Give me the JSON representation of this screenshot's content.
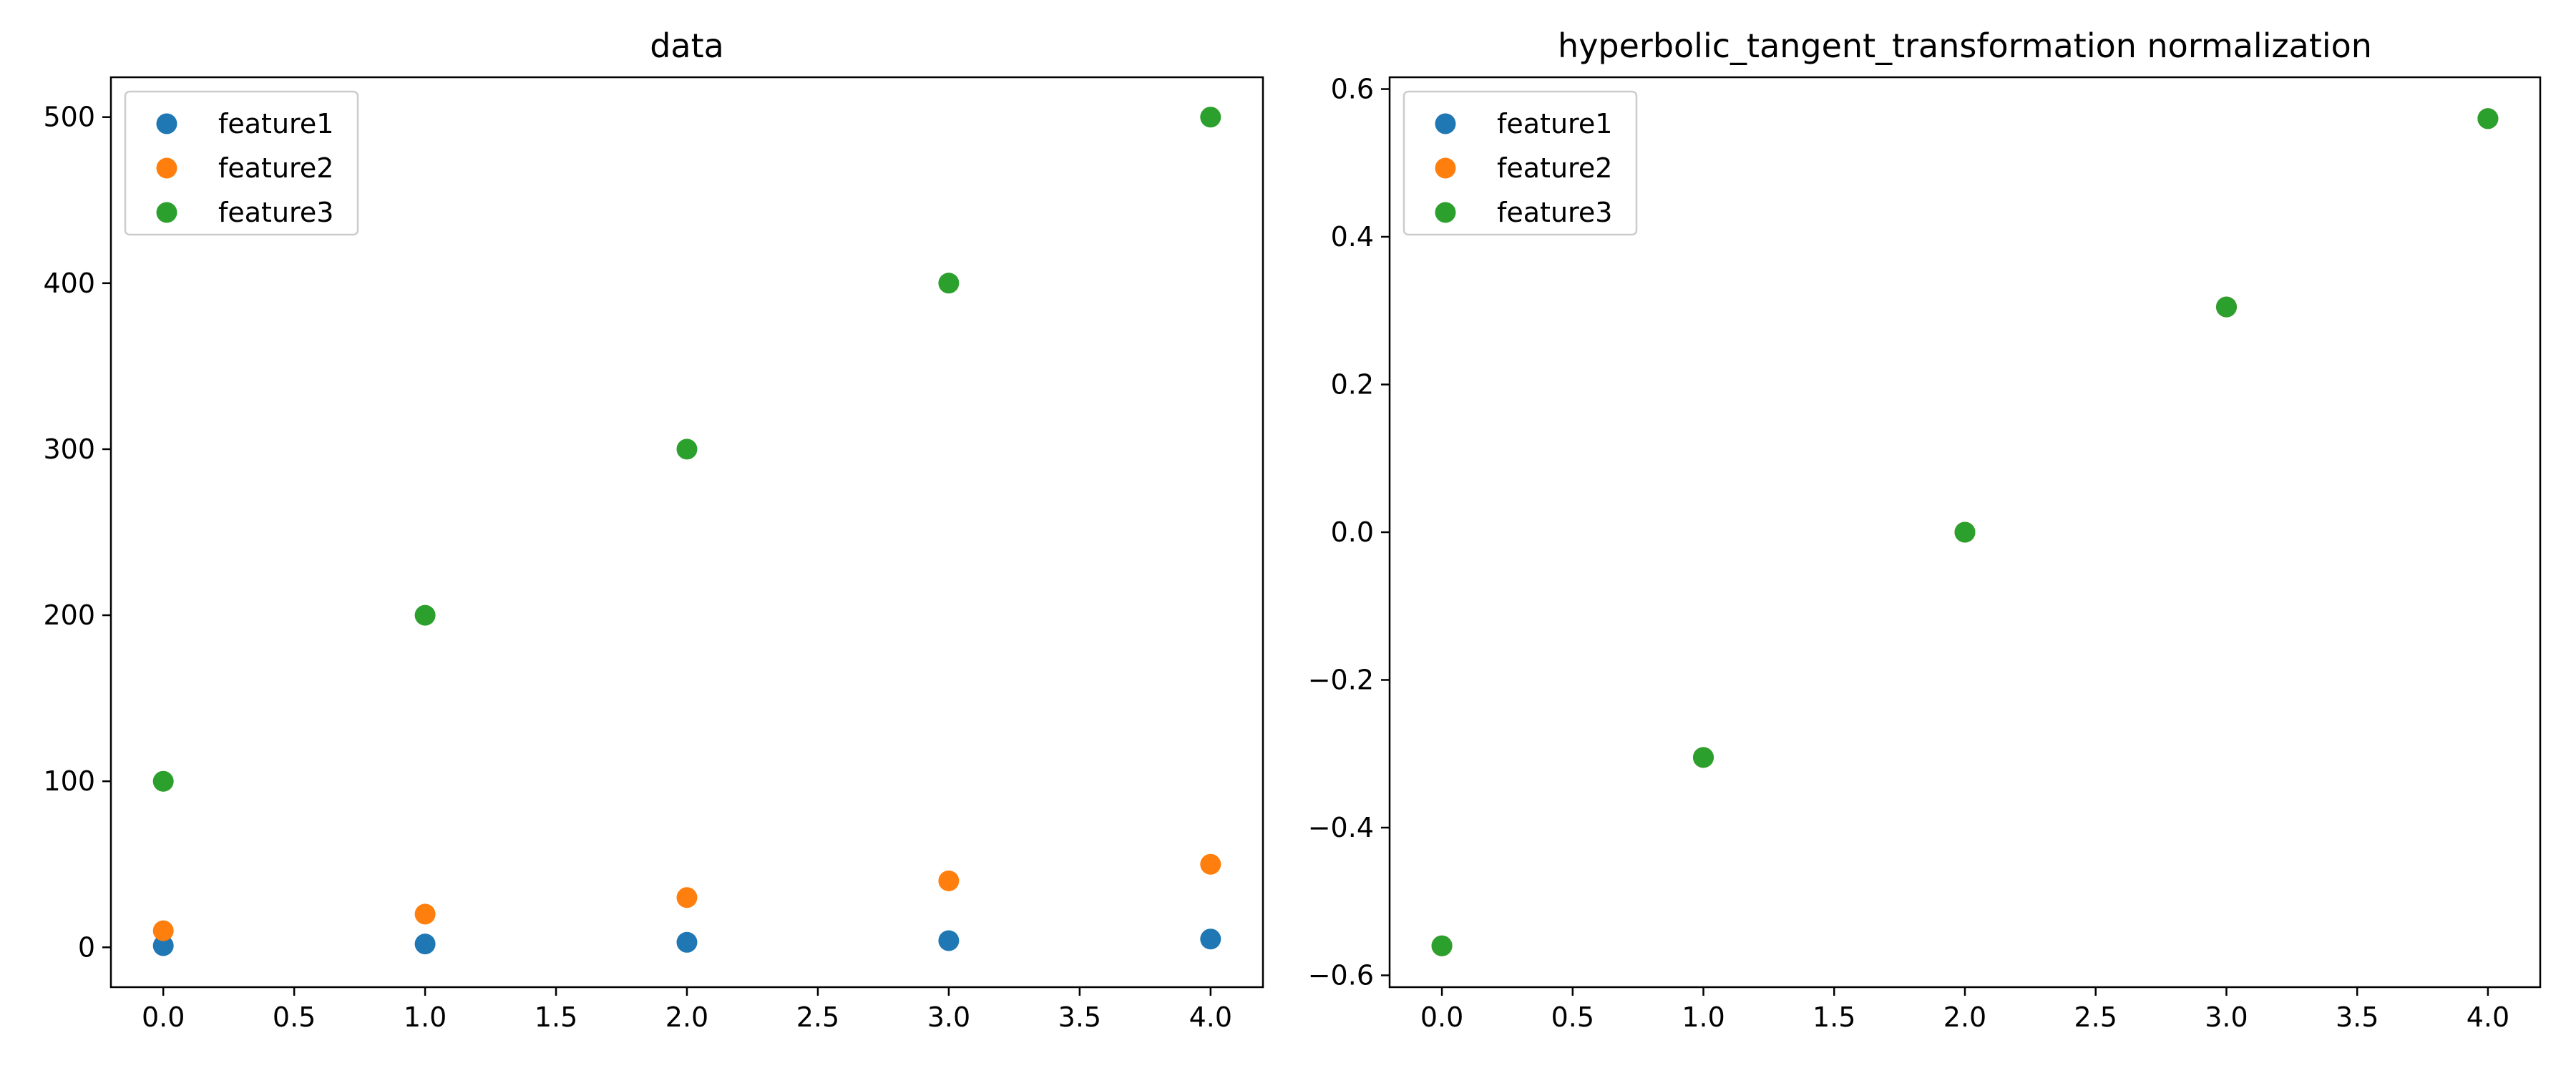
{
  "chart_data": [
    {
      "type": "scatter",
      "title": "data",
      "xlabel": "",
      "ylabel": "",
      "xlim": [
        -0.2,
        4.2
      ],
      "ylim": [
        -24,
        524
      ],
      "xticks": [
        0.0,
        0.5,
        1.0,
        1.5,
        2.0,
        2.5,
        3.0,
        3.5,
        4.0
      ],
      "xtick_labels": [
        "0.0",
        "0.5",
        "1.0",
        "1.5",
        "2.0",
        "2.5",
        "3.0",
        "3.5",
        "4.0"
      ],
      "yticks": [
        0,
        100,
        200,
        300,
        400,
        500
      ],
      "ytick_labels": [
        "0",
        "100",
        "200",
        "300",
        "400",
        "500"
      ],
      "grid": false,
      "legend": "top-left",
      "series": [
        {
          "name": "feature1",
          "color": "#1f77b4",
          "x": [
            0,
            1,
            2,
            3,
            4
          ],
          "y": [
            1,
            2,
            3,
            4,
            5
          ]
        },
        {
          "name": "feature2",
          "color": "#ff7f0e",
          "x": [
            0,
            1,
            2,
            3,
            4
          ],
          "y": [
            10,
            20,
            30,
            40,
            50
          ]
        },
        {
          "name": "feature3",
          "color": "#2ca02c",
          "x": [
            0,
            1,
            2,
            3,
            4
          ],
          "y": [
            100,
            200,
            300,
            400,
            500
          ]
        }
      ]
    },
    {
      "type": "scatter",
      "title": "hyperbolic_tangent_transformation normalization",
      "xlabel": "",
      "ylabel": "",
      "xlim": [
        -0.2,
        4.2
      ],
      "ylim": [
        -0.616,
        0.616
      ],
      "xticks": [
        0.0,
        0.5,
        1.0,
        1.5,
        2.0,
        2.5,
        3.0,
        3.5,
        4.0
      ],
      "xtick_labels": [
        "0.0",
        "0.5",
        "1.0",
        "1.5",
        "2.0",
        "2.5",
        "3.0",
        "3.5",
        "4.0"
      ],
      "yticks": [
        -0.6,
        -0.4,
        -0.2,
        0.0,
        0.2,
        0.4,
        0.6
      ],
      "ytick_labels": [
        "−0.6",
        "−0.4",
        "−0.2",
        "0.0",
        "0.2",
        "0.4",
        "0.6"
      ],
      "grid": false,
      "legend": "top-left",
      "series": [
        {
          "name": "feature1",
          "color": "#1f77b4",
          "x": [
            0,
            1,
            2,
            3,
            4
          ],
          "y": [
            -0.56,
            -0.305,
            0.0,
            0.305,
            0.56
          ]
        },
        {
          "name": "feature2",
          "color": "#ff7f0e",
          "x": [
            0,
            1,
            2,
            3,
            4
          ],
          "y": [
            -0.56,
            -0.305,
            0.0,
            0.305,
            0.56
          ]
        },
        {
          "name": "feature3",
          "color": "#2ca02c",
          "x": [
            0,
            1,
            2,
            3,
            4
          ],
          "y": [
            -0.56,
            -0.305,
            0.0,
            0.305,
            0.56
          ]
        }
      ]
    }
  ]
}
